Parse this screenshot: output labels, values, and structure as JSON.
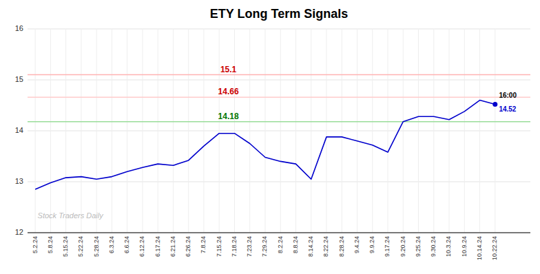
{
  "chart_data": {
    "type": "line",
    "title": "ETY Long Term Signals",
    "categories": [
      "5.2.24",
      "5.8.24",
      "5.15.24",
      "5.22.24",
      "5.28.24",
      "6.3.24",
      "6.6.24",
      "6.12.24",
      "6.17.24",
      "6.21.24",
      "6.26.24",
      "7.8.24",
      "7.15.24",
      "7.18.24",
      "7.23.24",
      "7.29.24",
      "8.2.24",
      "8.8.24",
      "8.14.24",
      "8.22.24",
      "8.28.24",
      "9.4.24",
      "9.9.24",
      "9.17.24",
      "9.20.24",
      "9.25.24",
      "9.30.24",
      "10.3.24",
      "10.9.24",
      "10.14.24",
      "10.22.24"
    ],
    "values": [
      12.85,
      12.98,
      13.08,
      13.1,
      13.05,
      13.1,
      13.2,
      13.28,
      13.35,
      13.32,
      13.42,
      13.7,
      13.95,
      13.95,
      13.75,
      13.48,
      13.4,
      13.35,
      13.05,
      13.88,
      13.88,
      13.8,
      13.72,
      13.58,
      14.18,
      14.28,
      14.28,
      14.22,
      14.38,
      14.6,
      14.52
    ],
    "color": "#0000cc",
    "ylim": [
      12,
      16
    ],
    "yticks": [
      12,
      13,
      14,
      15,
      16
    ],
    "grid": true,
    "reference_lines": [
      {
        "y": 15.1,
        "label": "15.1",
        "color": "#ffb3b3",
        "label_color": "#cc0000"
      },
      {
        "y": 14.66,
        "label": "14.66",
        "color": "#ffcccc",
        "label_color": "#cc0000"
      },
      {
        "y": 14.18,
        "label": "14.18",
        "color": "#99dd99",
        "label_color": "#007700"
      }
    ],
    "end_label": {
      "label": "16:00",
      "value": 14.52,
      "value_label": "14.52",
      "color": "#0000cc"
    },
    "watermark": "Stock Traders Daily"
  }
}
